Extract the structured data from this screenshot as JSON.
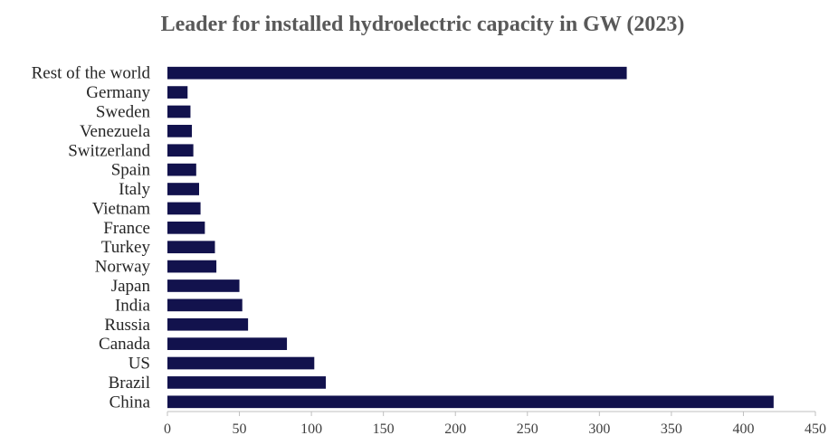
{
  "chart_data": {
    "type": "bar",
    "orientation": "horizontal",
    "title": "Leader for installed hydroelectric capacity in GW (2023)",
    "categories": [
      "Rest of the world",
      "Germany",
      "Sweden",
      "Venezuela",
      "Switzerland",
      "Spain",
      "Italy",
      "Vietnam",
      "France",
      "Turkey",
      "Norway",
      "Japan",
      "India",
      "Russia",
      "Canada",
      "US",
      "Brazil",
      "China"
    ],
    "values": [
      319,
      14,
      16,
      17,
      18,
      20,
      22,
      23,
      26,
      33,
      34,
      50,
      52,
      56,
      83,
      102,
      110,
      421
    ],
    "xticks": [
      "0",
      "50",
      "100",
      "150",
      "200",
      "250",
      "300",
      "350",
      "400",
      "450"
    ],
    "xlim": [
      0,
      450
    ],
    "bar_color": "#12124d",
    "grid": false,
    "legend": "none"
  }
}
